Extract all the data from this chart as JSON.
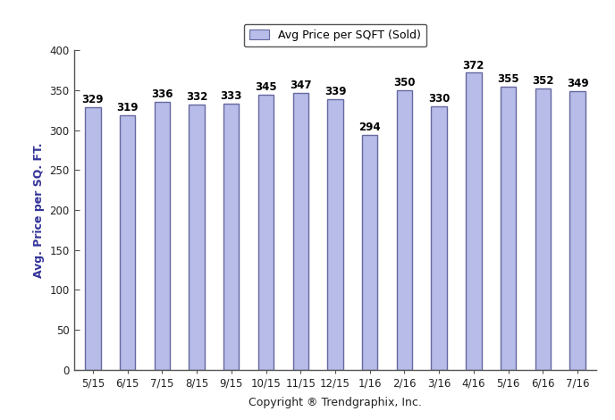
{
  "categories": [
    "5/15",
    "6/15",
    "7/15",
    "8/15",
    "9/15",
    "10/15",
    "11/15",
    "12/15",
    "1/16",
    "2/16",
    "3/16",
    "4/16",
    "5/16",
    "6/16",
    "7/16"
  ],
  "values": [
    329,
    319,
    336,
    332,
    333,
    345,
    347,
    339,
    294,
    350,
    330,
    372,
    355,
    352,
    349
  ],
  "bar_color": "#b8bce8",
  "bar_edge_color": "#6668a0",
  "bar_edge_width": 1.0,
  "ylabel": "Avg. Price per SQ. FT.",
  "xlabel": "Copyright ® Trendgraphix, Inc.",
  "legend_label": "Avg Price per SQFT (Sold)",
  "ylim": [
    0,
    400
  ],
  "yticks": [
    0,
    50,
    100,
    150,
    200,
    250,
    300,
    350,
    400
  ],
  "label_fontsize": 9,
  "tick_fontsize": 8.5,
  "value_fontsize": 8.5,
  "background_color": "#ffffff",
  "bar_width": 0.45
}
